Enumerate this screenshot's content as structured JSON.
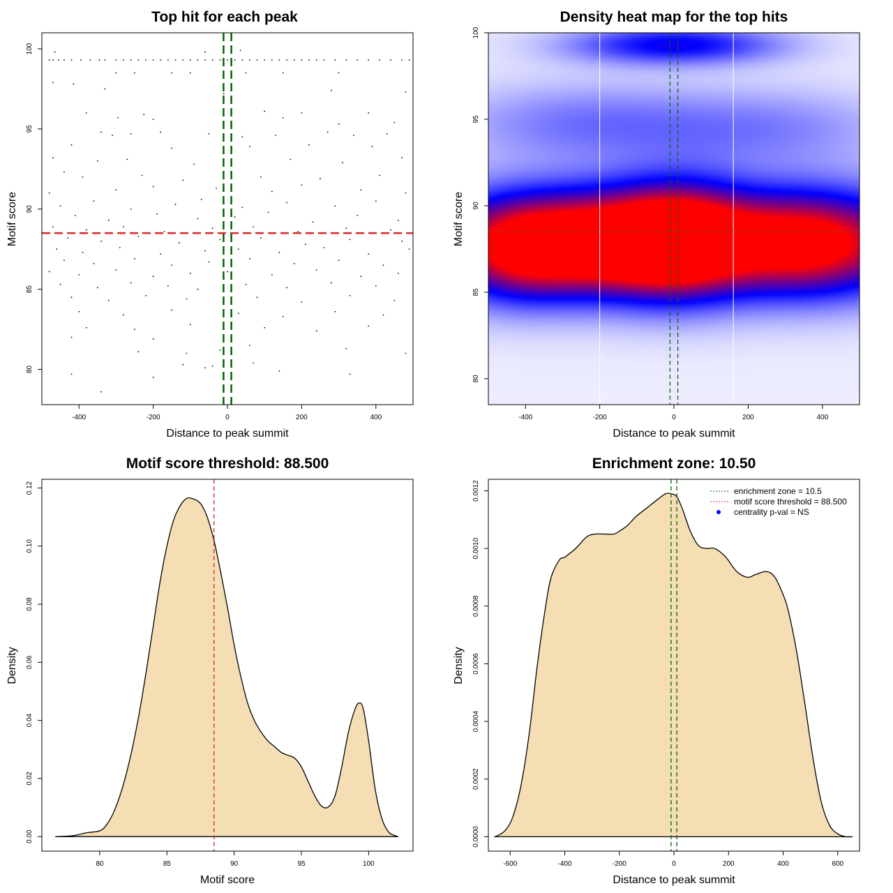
{
  "colors": {
    "scatter_point": "#000000",
    "threshold_line": "#d62728",
    "zone_line": "#006400",
    "density_fill": "#f5deb3",
    "heat_low": "#ffffff",
    "heat_mid": "#0000ff",
    "heat_high": "#ff0000",
    "legend_point": "#0000ff"
  },
  "chart_data": [
    {
      "id": "scatter",
      "type": "scatter",
      "title": "Top hit for each peak",
      "xlabel": "Distance to peak summit",
      "ylabel": "Motif score",
      "xlim": [
        -500,
        500
      ],
      "ylim": [
        77.8,
        101.0
      ],
      "xticks": [
        -400,
        -200,
        0,
        200,
        400
      ],
      "yticks": [
        80,
        85,
        90,
        95,
        100
      ],
      "hline": 88.5,
      "vlines": [
        -10.5,
        10.5
      ],
      "points": [
        [
          -480,
          99.3
        ],
        [
          -470,
          99.3
        ],
        [
          -455,
          99.3
        ],
        [
          -440,
          99.3
        ],
        [
          -420,
          99.3
        ],
        [
          -395,
          99.3
        ],
        [
          -370,
          99.3
        ],
        [
          -345,
          99.3
        ],
        [
          -330,
          99.3
        ],
        [
          -300,
          99.3
        ],
        [
          -280,
          99.3
        ],
        [
          -260,
          99.3
        ],
        [
          -240,
          99.3
        ],
        [
          -220,
          99.3
        ],
        [
          -200,
          99.3
        ],
        [
          -180,
          99.3
        ],
        [
          -160,
          99.3
        ],
        [
          -140,
          99.3
        ],
        [
          -120,
          99.3
        ],
        [
          -100,
          99.3
        ],
        [
          -80,
          99.3
        ],
        [
          -60,
          99.3
        ],
        [
          -40,
          99.3
        ],
        [
          -20,
          99.3
        ],
        [
          0,
          99.3
        ],
        [
          20,
          99.3
        ],
        [
          40,
          99.3
        ],
        [
          60,
          99.3
        ],
        [
          80,
          99.3
        ],
        [
          100,
          99.3
        ],
        [
          120,
          99.3
        ],
        [
          140,
          99.3
        ],
        [
          160,
          99.3
        ],
        [
          180,
          99.3
        ],
        [
          200,
          99.3
        ],
        [
          220,
          99.3
        ],
        [
          240,
          99.3
        ],
        [
          260,
          99.3
        ],
        [
          290,
          99.3
        ],
        [
          320,
          99.3
        ],
        [
          350,
          99.3
        ],
        [
          380,
          99.3
        ],
        [
          410,
          99.3
        ],
        [
          440,
          99.3
        ],
        [
          470,
          99.3
        ],
        [
          490,
          99.3
        ],
        [
          -465,
          99.8
        ],
        [
          -60,
          99.8
        ],
        [
          35,
          99.9
        ],
        [
          -300,
          98.5
        ],
        [
          -250,
          98.5
        ],
        [
          -150,
          98.5
        ],
        [
          -100,
          98.5
        ],
        [
          50,
          98.5
        ],
        [
          150,
          98.5
        ],
        [
          300,
          98.5
        ],
        [
          -470,
          97.9
        ],
        [
          -415,
          97.8
        ],
        [
          -330,
          97.5
        ],
        [
          -10,
          97.2
        ],
        [
          280,
          97.4
        ],
        [
          480,
          97.3
        ],
        [
          -380,
          96.0
        ],
        [
          -225,
          95.9
        ],
        [
          100,
          96.1
        ],
        [
          200,
          96.0
        ],
        [
          380,
          96.0
        ],
        [
          -295,
          95.7
        ],
        [
          -200,
          95.6
        ],
        [
          150,
          95.7
        ],
        [
          300,
          95.3
        ],
        [
          450,
          95.4
        ],
        [
          -340,
          94.8
        ],
        [
          -310,
          94.6
        ],
        [
          -260,
          94.7
        ],
        [
          -180,
          94.8
        ],
        [
          -50,
          94.7
        ],
        [
          40,
          94.5
        ],
        [
          130,
          94.6
        ],
        [
          270,
          94.8
        ],
        [
          340,
          94.6
        ],
        [
          430,
          94.7
        ],
        [
          -420,
          94.0
        ],
        [
          -150,
          93.8
        ],
        [
          60,
          93.9
        ],
        [
          220,
          94.0
        ],
        [
          390,
          93.9
        ],
        [
          -470,
          93.2
        ],
        [
          -350,
          93.0
        ],
        [
          -270,
          93.1
        ],
        [
          -90,
          92.8
        ],
        [
          10,
          93.0
        ],
        [
          170,
          93.1
        ],
        [
          310,
          92.9
        ],
        [
          470,
          93.2
        ],
        [
          -440,
          92.3
        ],
        [
          -390,
          92.0
        ],
        [
          -230,
          92.1
        ],
        [
          -120,
          91.8
        ],
        [
          90,
          92.0
        ],
        [
          250,
          91.9
        ],
        [
          410,
          92.1
        ],
        [
          -480,
          91.0
        ],
        [
          -300,
          91.2
        ],
        [
          -200,
          91.4
        ],
        [
          -30,
          91.3
        ],
        [
          120,
          91.1
        ],
        [
          200,
          91.5
        ],
        [
          360,
          91.2
        ],
        [
          480,
          91.0
        ],
        [
          -450,
          90.2
        ],
        [
          -360,
          90.5
        ],
        [
          -260,
          90.0
        ],
        [
          -140,
          90.3
        ],
        [
          -70,
          90.6
        ],
        [
          40,
          90.1
        ],
        [
          160,
          90.4
        ],
        [
          290,
          90.2
        ],
        [
          400,
          90.5
        ],
        [
          -410,
          89.6
        ],
        [
          -320,
          89.3
        ],
        [
          -190,
          89.7
        ],
        [
          -80,
          89.4
        ],
        [
          20,
          89.5
        ],
        [
          110,
          89.8
        ],
        [
          230,
          89.2
        ],
        [
          350,
          89.6
        ],
        [
          460,
          89.3
        ],
        [
          -470,
          88.9
        ],
        [
          -380,
          88.7
        ],
        [
          -280,
          88.9
        ],
        [
          -170,
          88.6
        ],
        [
          -40,
          88.8
        ],
        [
          70,
          88.9
        ],
        [
          190,
          88.6
        ],
        [
          320,
          88.8
        ],
        [
          440,
          88.7
        ],
        [
          -430,
          88.2
        ],
        [
          -340,
          88.0
        ],
        [
          -240,
          88.3
        ],
        [
          -130,
          87.9
        ],
        [
          -20,
          88.1
        ],
        [
          90,
          88.2
        ],
        [
          210,
          87.8
        ],
        [
          330,
          88.1
        ],
        [
          470,
          88.0
        ],
        [
          -460,
          87.5
        ],
        [
          -390,
          87.3
        ],
        [
          -290,
          87.6
        ],
        [
          -180,
          87.2
        ],
        [
          -60,
          87.4
        ],
        [
          30,
          87.5
        ],
        [
          140,
          87.3
        ],
        [
          260,
          87.6
        ],
        [
          380,
          87.2
        ],
        [
          490,
          87.5
        ],
        [
          -440,
          86.8
        ],
        [
          -360,
          86.6
        ],
        [
          -250,
          86.9
        ],
        [
          -150,
          86.5
        ],
        [
          -50,
          86.7
        ],
        [
          60,
          86.9
        ],
        [
          180,
          86.6
        ],
        [
          300,
          86.8
        ],
        [
          420,
          86.5
        ],
        [
          -480,
          86.1
        ],
        [
          -400,
          85.9
        ],
        [
          -300,
          86.2
        ],
        [
          -200,
          85.8
        ],
        [
          -100,
          86.0
        ],
        [
          0,
          86.1
        ],
        [
          120,
          85.9
        ],
        [
          240,
          86.2
        ],
        [
          360,
          85.8
        ],
        [
          460,
          86.0
        ],
        [
          -450,
          85.3
        ],
        [
          -350,
          85.1
        ],
        [
          -260,
          85.4
        ],
        [
          -160,
          85.2
        ],
        [
          -80,
          85.0
        ],
        [
          50,
          85.3
        ],
        [
          160,
          85.1
        ],
        [
          280,
          85.4
        ],
        [
          400,
          85.2
        ],
        [
          -420,
          84.5
        ],
        [
          -320,
          84.3
        ],
        [
          -220,
          84.6
        ],
        [
          -110,
          84.4
        ],
        [
          80,
          84.5
        ],
        [
          200,
          84.2
        ],
        [
          330,
          84.6
        ],
        [
          450,
          84.3
        ],
        [
          -400,
          83.6
        ],
        [
          -280,
          83.4
        ],
        [
          -150,
          83.7
        ],
        [
          30,
          83.5
        ],
        [
          150,
          83.3
        ],
        [
          290,
          83.6
        ],
        [
          420,
          83.4
        ],
        [
          -380,
          82.6
        ],
        [
          -250,
          82.5
        ],
        [
          -100,
          82.8
        ],
        [
          100,
          82.6
        ],
        [
          240,
          82.4
        ],
        [
          380,
          82.7
        ],
        [
          -420,
          82.0
        ],
        [
          -200,
          81.9
        ],
        [
          60,
          81.5
        ],
        [
          320,
          81.3
        ],
        [
          -240,
          81.1
        ],
        [
          -110,
          81.0
        ],
        [
          -20,
          81.2
        ],
        [
          480,
          81.0
        ],
        [
          -120,
          80.3
        ],
        [
          -60,
          80.1
        ],
        [
          -40,
          80.2
        ],
        [
          70,
          80.4
        ],
        [
          -420,
          79.7
        ],
        [
          -200,
          79.5
        ],
        [
          140,
          79.9
        ],
        [
          330,
          79.7
        ],
        [
          -340,
          78.6
        ]
      ]
    },
    {
      "id": "heatmap",
      "type": "heatmap",
      "title": "Density heat map for the top hits",
      "xlabel": "Distance to peak summit",
      "ylabel": "Motif score",
      "xlim": [
        -500,
        500
      ],
      "ylim": [
        78.5,
        100.0
      ],
      "xticks": [
        -400,
        -200,
        0,
        200,
        400
      ],
      "yticks": [
        80,
        85,
        90,
        95,
        100
      ],
      "hline": 88.5,
      "vlines": [
        -10.5,
        10.5
      ],
      "gridlines_x": [
        -200,
        160
      ],
      "blobs": [
        {
          "x": -200,
          "y": 87.8,
          "sx": 170,
          "sy": 2.0,
          "w": 0.9
        },
        {
          "x": 20,
          "y": 88.0,
          "sx": 130,
          "sy": 2.2,
          "w": 1.0
        },
        {
          "x": 350,
          "y": 87.8,
          "sx": 160,
          "sy": 2.0,
          "w": 0.85
        },
        {
          "x": -420,
          "y": 87.5,
          "sx": 120,
          "sy": 2.0,
          "w": 0.6
        },
        {
          "x": 0,
          "y": 99.3,
          "sx": 200,
          "sy": 0.8,
          "w": 0.55
        },
        {
          "x": -250,
          "y": 94.8,
          "sx": 250,
          "sy": 1.6,
          "w": 0.25
        },
        {
          "x": 250,
          "y": 94.5,
          "sx": 250,
          "sy": 1.6,
          "w": 0.22
        }
      ]
    },
    {
      "id": "score_density",
      "type": "area",
      "title": "Motif score threshold: 88.500",
      "xlabel": "Motif score",
      "ylabel": "Density",
      "xlim": [
        75.7,
        103.3
      ],
      "ylim": [
        -0.005,
        0.123
      ],
      "xticks": [
        80,
        85,
        90,
        95,
        100
      ],
      "yticks": [
        0.0,
        0.02,
        0.04,
        0.06,
        0.08,
        0.1,
        0.12
      ],
      "ytick_labels": [
        "0.00",
        "0.02",
        "0.04",
        "0.06",
        "0.08",
        "0.10",
        "0.12"
      ],
      "vline": 88.5,
      "x": [
        76.7,
        78,
        79,
        80,
        80.5,
        81,
        81.5,
        82,
        82.5,
        83,
        83.5,
        84,
        84.5,
        85,
        85.5,
        86,
        86.5,
        87,
        87.3,
        87.6,
        88,
        88.5,
        89,
        89.5,
        90,
        90.5,
        91,
        91.5,
        92,
        92.5,
        93,
        93.5,
        94,
        94.5,
        95,
        95.5,
        96,
        96.5,
        97,
        97.5,
        98,
        98.5,
        99,
        99.3,
        99.6,
        100,
        100.5,
        101,
        101.5,
        102,
        102.2
      ],
      "y": [
        0.0,
        0.0003,
        0.0013,
        0.002,
        0.004,
        0.008,
        0.014,
        0.022,
        0.032,
        0.044,
        0.058,
        0.073,
        0.088,
        0.1,
        0.109,
        0.114,
        0.1165,
        0.1162,
        0.1155,
        0.114,
        0.11,
        0.102,
        0.091,
        0.079,
        0.066,
        0.055,
        0.046,
        0.04,
        0.036,
        0.033,
        0.031,
        0.029,
        0.028,
        0.027,
        0.024,
        0.019,
        0.014,
        0.0105,
        0.0102,
        0.014,
        0.024,
        0.036,
        0.044,
        0.046,
        0.044,
        0.033,
        0.016,
        0.006,
        0.0015,
        0.0003,
        0.0
      ]
    },
    {
      "id": "distance_density",
      "type": "area",
      "title": "Enrichment zone: 10.50",
      "xlabel": "Distance to peak summit",
      "ylabel": "Density",
      "xlim": [
        -680,
        680
      ],
      "ylim": [
        -5e-05,
        0.00124
      ],
      "xticks": [
        -600,
        -400,
        -200,
        0,
        200,
        400,
        600
      ],
      "yticks": [
        0.0,
        0.0002,
        0.0004,
        0.0006,
        0.0008,
        0.001,
        0.0012
      ],
      "ytick_labels": [
        "0.0000",
        "0.0002",
        "0.0004",
        "0.0006",
        "0.0008",
        "0.0010",
        "0.0012"
      ],
      "vlines": [
        -10.5,
        10.5
      ],
      "x": [
        -655,
        -620,
        -590,
        -560,
        -530,
        -500,
        -470,
        -450,
        -420,
        -400,
        -360,
        -320,
        -290,
        -250,
        -220,
        -200,
        -170,
        -140,
        -100,
        -60,
        -30,
        -10,
        10,
        30,
        60,
        90,
        120,
        150,
        190,
        230,
        270,
        300,
        340,
        370,
        400,
        420,
        450,
        480,
        510,
        540,
        570,
        600,
        630,
        655
      ],
      "y": [
        0.0,
        2e-05,
        7e-05,
        0.00018,
        0.00036,
        0.0006,
        0.0008,
        0.0009,
        0.00096,
        0.00097,
        0.001,
        0.00104,
        0.00105,
        0.00105,
        0.00105,
        0.00106,
        0.00108,
        0.00111,
        0.00114,
        0.00117,
        0.00119,
        0.00119,
        0.00118,
        0.00114,
        0.00106,
        0.00101,
        0.001,
        0.001,
        0.00097,
        0.00092,
        0.0009,
        0.00091,
        0.00092,
        0.0009,
        0.00084,
        0.00078,
        0.00064,
        0.00046,
        0.00027,
        0.00012,
        4e-05,
        1e-05,
        0.0,
        0.0
      ],
      "legend": [
        {
          "label": "enrichment zone = 10.5",
          "style": "line",
          "color": "#006400"
        },
        {
          "label": "motif score threshold = 88.500",
          "style": "line",
          "color": "#d62728"
        },
        {
          "label": "centrality p-val = NS",
          "style": "point",
          "color": "#0000ff"
        }
      ]
    }
  ]
}
